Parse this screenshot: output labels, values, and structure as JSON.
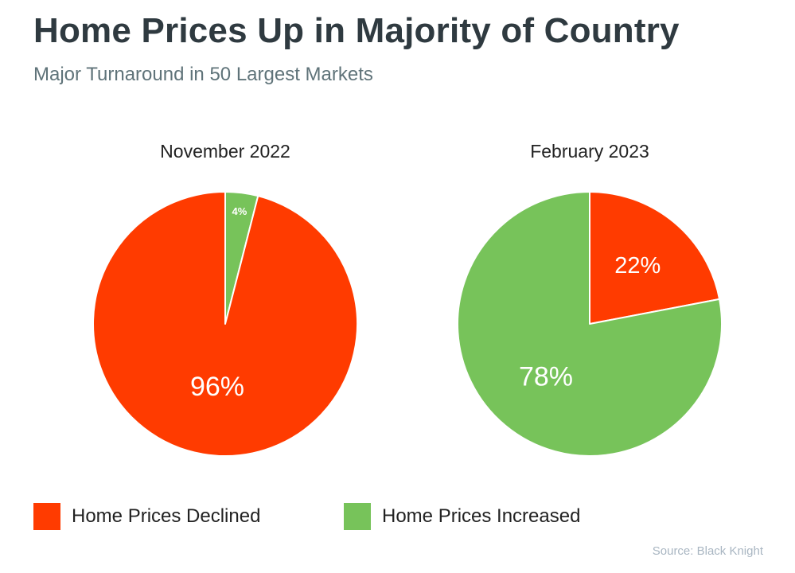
{
  "header": {
    "title": "Home Prices Up in Majority of Country",
    "subtitle": "Major Turnaround in 50 Largest Markets"
  },
  "colors": {
    "declined": "#ff3b00",
    "increased": "#77c35a"
  },
  "chart_data": [
    {
      "type": "pie",
      "title": "November 2022",
      "slices": [
        {
          "name": "Home Prices Increased",
          "value": 4,
          "label": "4%",
          "color": "#77c35a"
        },
        {
          "name": "Home Prices Declined",
          "value": 96,
          "label": "96%",
          "color": "#ff3b00"
        }
      ]
    },
    {
      "type": "pie",
      "title": "February 2023",
      "slices": [
        {
          "name": "Home Prices Declined",
          "value": 22,
          "label": "22%",
          "color": "#ff3b00"
        },
        {
          "name": "Home Prices Increased",
          "value": 78,
          "label": "78%",
          "color": "#77c35a"
        }
      ]
    }
  ],
  "legend": {
    "items": [
      {
        "label": "Home Prices Declined",
        "color": "#ff3b00"
      },
      {
        "label": "Home Prices Increased",
        "color": "#77c35a"
      }
    ]
  },
  "footer": {
    "source": "Source: Black Knight"
  }
}
